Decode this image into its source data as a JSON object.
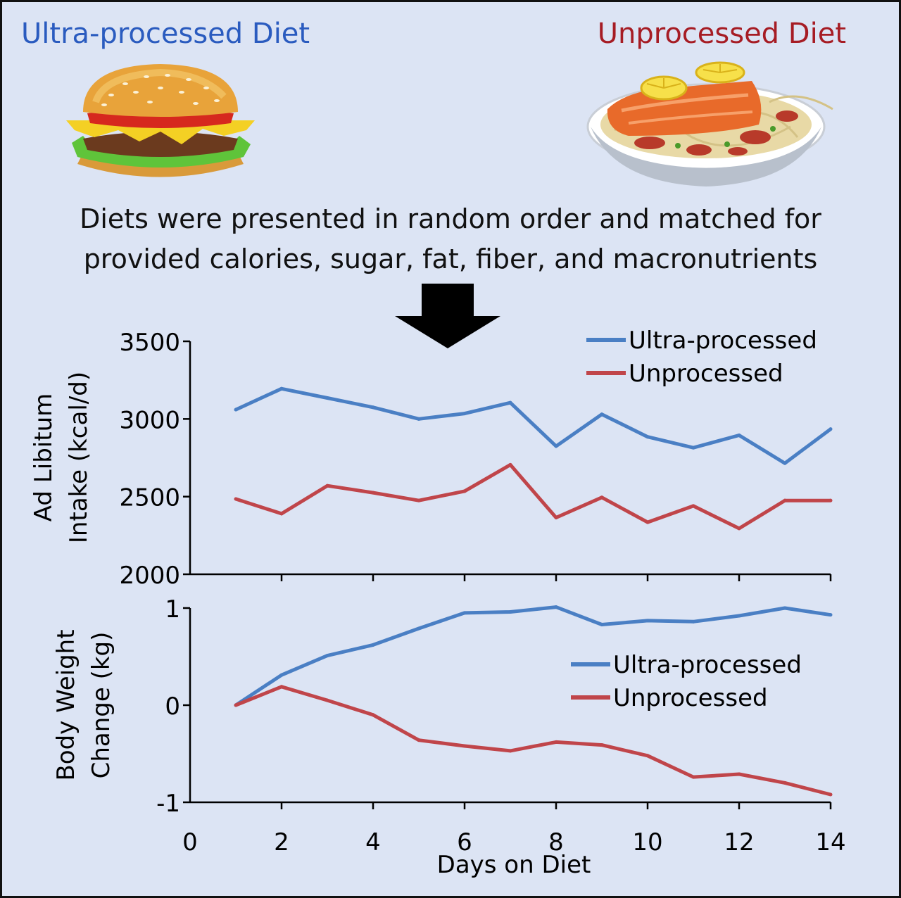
{
  "titles": {
    "left": "Ultra-processed Diet",
    "right": "Unprocessed Diet"
  },
  "images": {
    "left": "burger-icon",
    "right": "salmon-pasta-icon"
  },
  "caption": {
    "line1": "Diets were presented in random order and matched for",
    "line2": "provided calories, sugar, fat, fiber, and macronutrients"
  },
  "colors": {
    "background": "#dce4f4",
    "ultra": "#4a7fc4",
    "unprocessed": "#c0454a",
    "title_ultra": "#2a5bbf",
    "title_unprocessed": "#a61c24"
  },
  "chart_data": [
    {
      "type": "line",
      "ylabel": [
        "Ad Libitum",
        "Intake (kcal/d)"
      ],
      "xlabel": "",
      "xlim": [
        0,
        14
      ],
      "ylim": [
        2000,
        3500
      ],
      "yticks": [
        "2000",
        "2500",
        "3000",
        "3500"
      ],
      "legend": "top-right",
      "x": [
        1,
        2,
        3,
        4,
        5,
        6,
        7,
        8,
        9,
        10,
        11,
        12,
        13,
        14
      ],
      "series": [
        {
          "name": "Ultra-processed",
          "values": [
            3060,
            3195,
            3135,
            3075,
            3000,
            3035,
            3105,
            2825,
            3030,
            2885,
            2815,
            2895,
            2715,
            2935
          ]
        },
        {
          "name": "Unprocessed",
          "values": [
            2485,
            2390,
            2570,
            2525,
            2475,
            2535,
            2705,
            2365,
            2495,
            2335,
            2440,
            2295,
            2475,
            2475
          ]
        }
      ]
    },
    {
      "type": "line",
      "ylabel": [
        "Body Weight",
        "Change (kg)"
      ],
      "xlabel": "Days on Diet",
      "xlim": [
        0,
        14
      ],
      "ylim": [
        -1,
        1
      ],
      "yticks": [
        "-1",
        "0",
        "1"
      ],
      "xticks": [
        "0",
        "2",
        "4",
        "6",
        "8",
        "10",
        "12",
        "14"
      ],
      "legend": "middle-right",
      "x": [
        1,
        2,
        3,
        4,
        5,
        6,
        7,
        8,
        9,
        10,
        11,
        12,
        13,
        14
      ],
      "series": [
        {
          "name": "Ultra-processed",
          "values": [
            0.0,
            0.31,
            0.51,
            0.62,
            0.79,
            0.95,
            0.96,
            1.01,
            0.83,
            0.87,
            0.86,
            0.92,
            1.0,
            0.93
          ]
        },
        {
          "name": "Unprocessed",
          "values": [
            0.0,
            0.19,
            0.05,
            -0.1,
            -0.36,
            -0.42,
            -0.47,
            -0.38,
            -0.41,
            -0.52,
            -0.74,
            -0.71,
            -0.8,
            -0.92
          ]
        }
      ]
    }
  ]
}
